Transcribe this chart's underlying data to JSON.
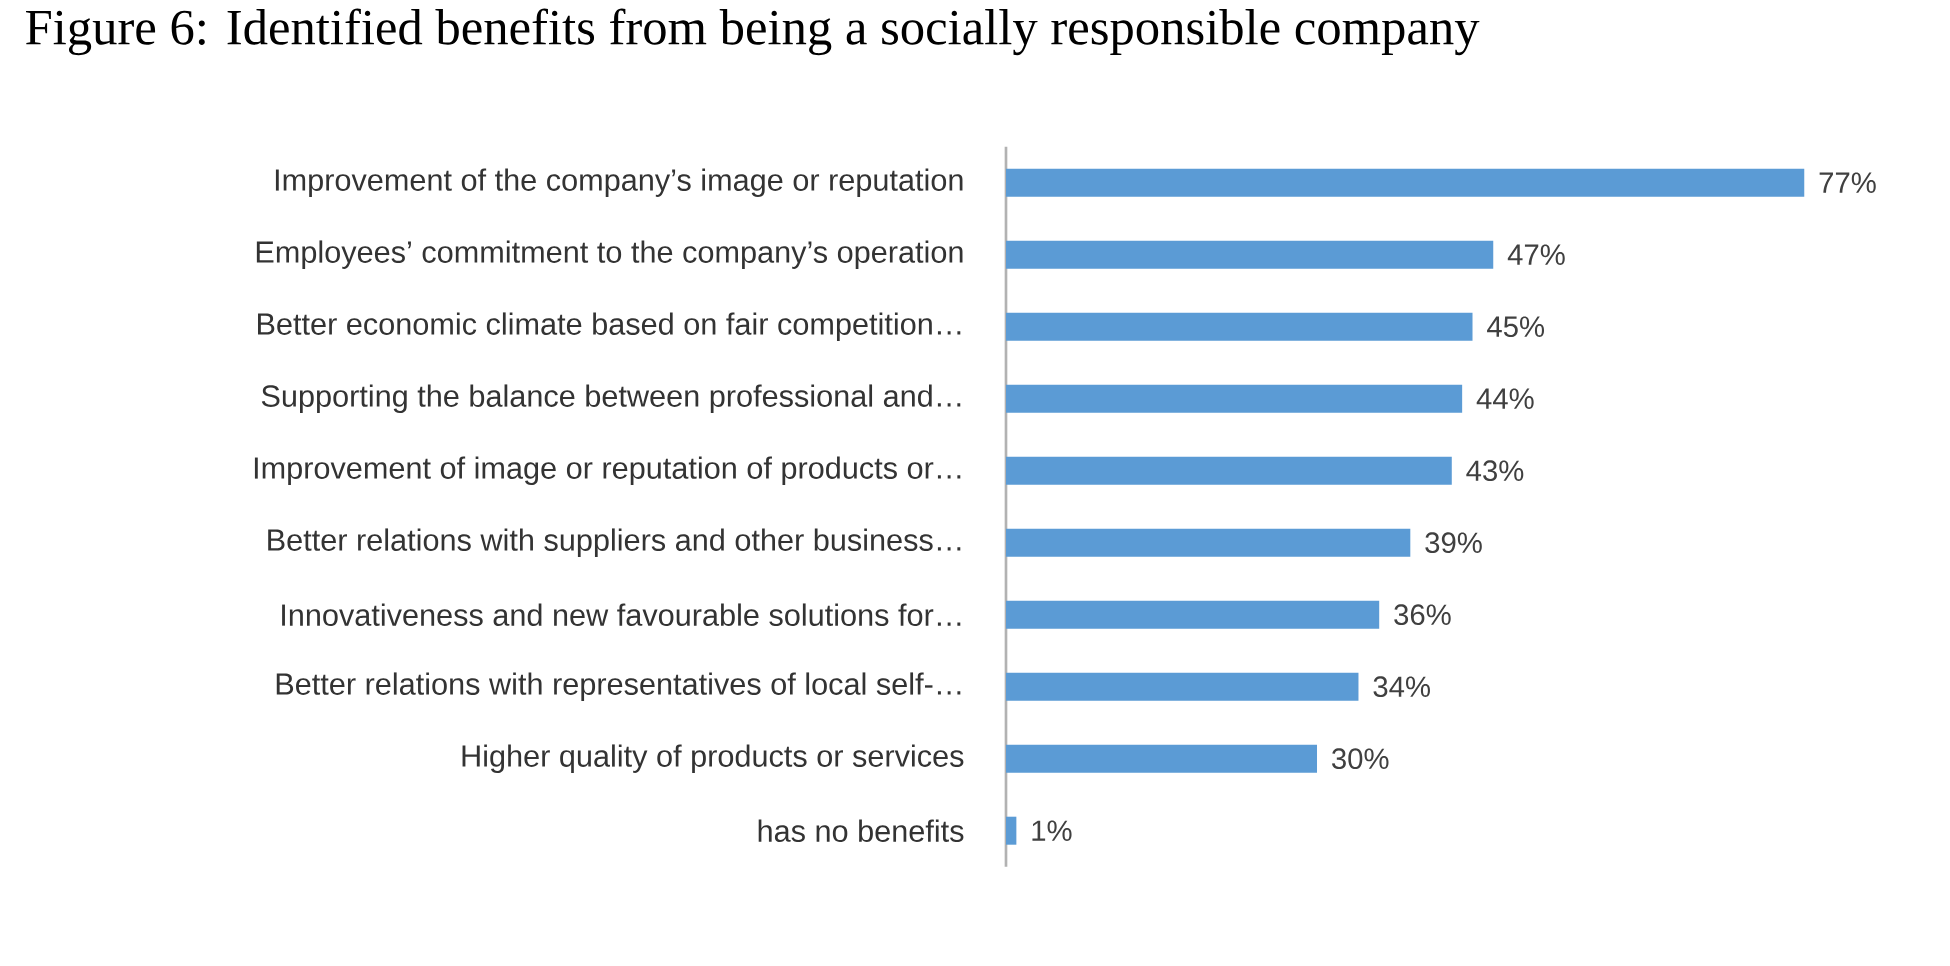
{
  "chart_data": {
    "type": "bar",
    "orientation": "horizontal",
    "title": "Figure 6: Identified benefits from being a socially responsible company",
    "categories": [
      "Improvement of the company’s image or reputation",
      "Employees’ commitment to the company’s operation",
      "Better economic climate based on fair competition…",
      "Supporting the balance between professional and…",
      "Improvement of image or reputation of products or…",
      "Better relations with suppliers and other business…",
      "Innovativeness and new favourable solutions for…",
      "Better relations with representatives of local self-…",
      "Higher quality of products or services",
      "has no benefits"
    ],
    "values": [
      77,
      47,
      45,
      44,
      43,
      39,
      36,
      34,
      30,
      1
    ],
    "value_labels": [
      "77%",
      "47%",
      "45%",
      "44%",
      "43%",
      "39%",
      "36%",
      "34%",
      "30%",
      "1%"
    ],
    "color": "#5b9bd5"
  }
}
